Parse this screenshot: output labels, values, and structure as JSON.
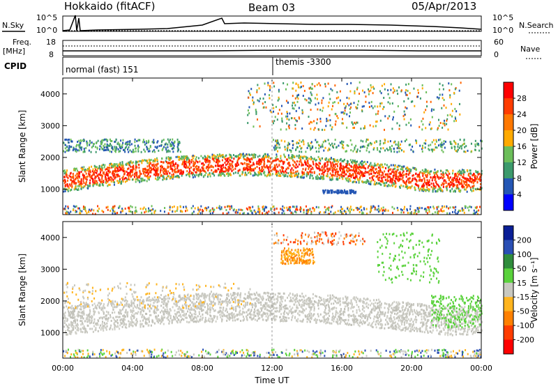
{
  "header": {
    "station": "Hokkaido (fitACF)",
    "beam": "Beam 03",
    "date": "05/Apr/2013"
  },
  "strip": {
    "nsky_label": "N.Sky",
    "nsearch_label": "N.Search",
    "noise_left_ticks": [
      "10^5",
      "10^0"
    ],
    "noise_right_ticks": [
      "10^5",
      "10^0"
    ],
    "freq_label_1": "Freq.",
    "freq_label_2": "[MHz]",
    "freq_ticks": [
      "18",
      "8"
    ],
    "nave_label": "Nave",
    "nave_ticks": [
      "60",
      "0"
    ],
    "cpid_label": "CPID",
    "cpid_1": "normal (fast) 151",
    "cpid_2": "themis -3300"
  },
  "chart_data": [
    {
      "type": "heatmap",
      "title": "",
      "ylabel": "Slant Range [km]",
      "xlabel": "",
      "x_ticks": [
        "00:00",
        "04:00",
        "08:00",
        "12:00",
        "16:00",
        "20:00",
        "00:00"
      ],
      "y_ticks": [
        "1000",
        "2000",
        "3000",
        "4000"
      ],
      "ylim": [
        200,
        4500
      ],
      "colorbar": {
        "label": "Power [dB]",
        "ticks": [
          "28",
          "24",
          "20",
          "16",
          "12",
          "8",
          "4"
        ],
        "colors": [
          "#ff0000",
          "#ff3c00",
          "#ff7800",
          "#ffaa00",
          "#6cbe5a",
          "#3c9a6c",
          "#2456b4",
          "#0000ff"
        ]
      }
    },
    {
      "type": "heatmap",
      "title": "",
      "ylabel": "Slant Range [km]",
      "xlabel": "Time UT",
      "x_ticks": [
        "00:00",
        "04:00",
        "08:00",
        "12:00",
        "16:00",
        "20:00",
        "00:00"
      ],
      "y_ticks": [
        "1000",
        "2000",
        "3000",
        "4000"
      ],
      "ylim": [
        200,
        4500
      ],
      "colorbar": {
        "label": "Velocity [m s⁻¹]",
        "ticks": [
          "200",
          "100",
          "50",
          "15",
          "-15",
          "-50",
          "-100",
          "-200"
        ],
        "colors": [
          "#0a1e96",
          "#2a4fb4",
          "#2f8c3c",
          "#5ad23c",
          "#c8c8c0",
          "#ffb41e",
          "#ff8000",
          "#ff3c00",
          "#ff0000"
        ]
      }
    }
  ]
}
